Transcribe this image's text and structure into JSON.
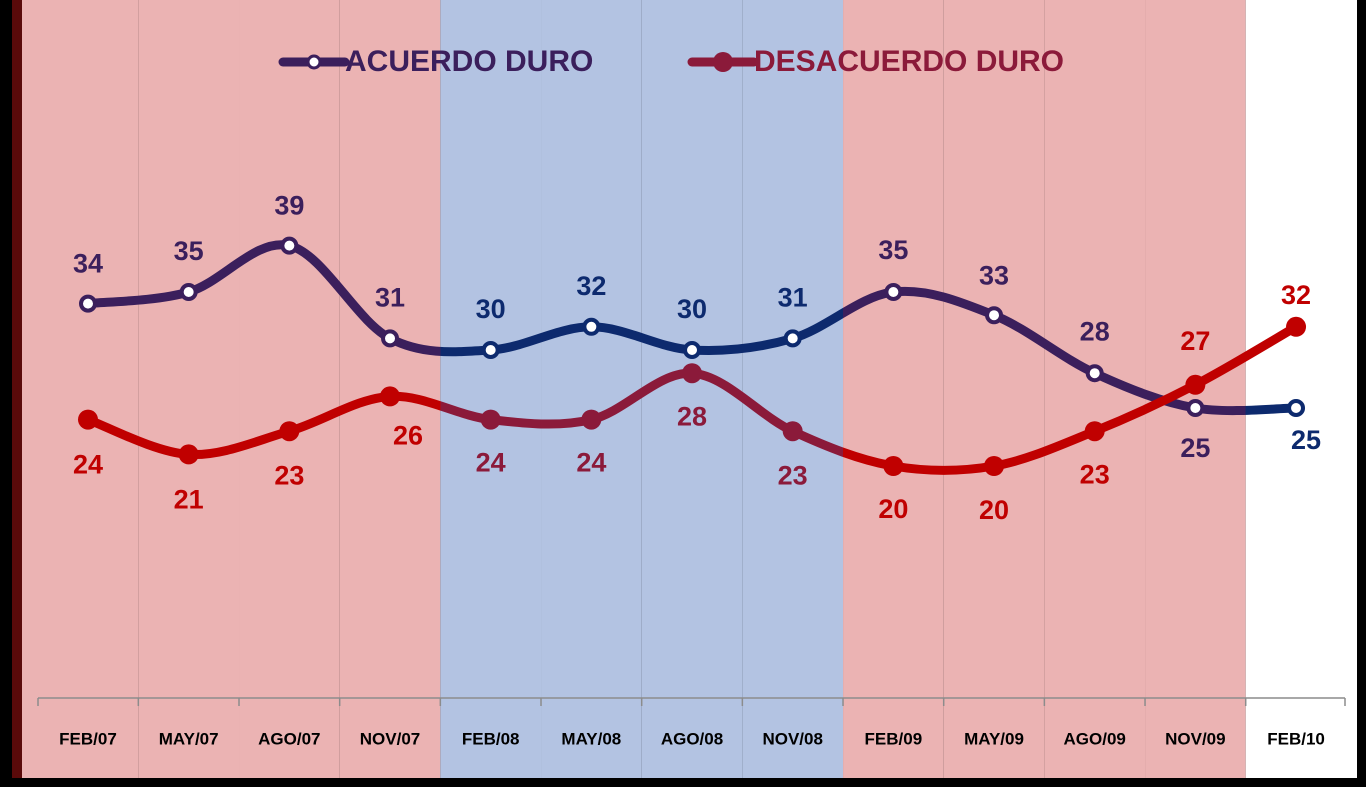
{
  "chart_data": {
    "type": "line",
    "categories": [
      "FEB/07",
      "MAY/07",
      "AGO/07",
      "NOV/07",
      "FEB/08",
      "MAY/08",
      "AGO/08",
      "NOV/08",
      "FEB/09",
      "MAY/09",
      "AGO/09",
      "NOV/09",
      "FEB/10"
    ],
    "category_backgrounds": [
      "#ebb3b3",
      "#ebb3b3",
      "#ebb3b3",
      "#ebb3b3",
      "#b3c3e2",
      "#b3c3e2",
      "#b3c3e2",
      "#b3c3e2",
      "#ebb3b3",
      "#ebb3b3",
      "#ebb3b3",
      "#ebb3b3",
      "#ffffff"
    ],
    "series": [
      {
        "name": "ACUERDO DURO",
        "color": "#3b1f5c",
        "marker": "hollow",
        "point_colors": [
          "#3b1f5c",
          "#3b1f5c",
          "#3b1f5c",
          "#3b1f5c",
          "#0d2a6e",
          "#0d2a6e",
          "#0d2a6e",
          "#0d2a6e",
          "#3b1f5c",
          "#3b1f5c",
          "#3b1f5c",
          "#3b1f5c",
          "#0d2a6e"
        ],
        "values": [
          34,
          35,
          39,
          31,
          30,
          32,
          30,
          31,
          35,
          33,
          28,
          25,
          25
        ]
      },
      {
        "name": "DESACUERDO DURO",
        "color": "#8b1a3a",
        "marker": "filled",
        "point_colors": [
          "#c00000",
          "#c00000",
          "#c00000",
          "#c00000",
          "#8b1a3a",
          "#8b1a3a",
          "#8b1a3a",
          "#8b1a3a",
          "#c00000",
          "#c00000",
          "#c00000",
          "#c00000",
          "#c00000"
        ],
        "values": [
          24,
          21,
          23,
          26,
          24,
          24,
          28,
          23,
          20,
          20,
          23,
          27,
          32
        ]
      }
    ],
    "ylim": [
      0,
      60
    ],
    "smooth": true
  }
}
